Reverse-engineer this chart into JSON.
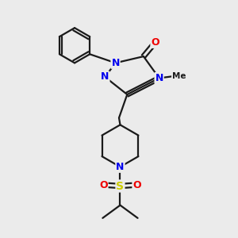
{
  "bg_color": "#ebebeb",
  "atom_colors": {
    "N": "#0000ee",
    "O": "#ee0000",
    "S": "#cccc00"
  },
  "line_color": "#1a1a1a",
  "line_width": 1.6,
  "fig_size": [
    3.0,
    3.0
  ],
  "dpi": 100,
  "xlim": [
    0,
    10
  ],
  "ylim": [
    0,
    10
  ]
}
